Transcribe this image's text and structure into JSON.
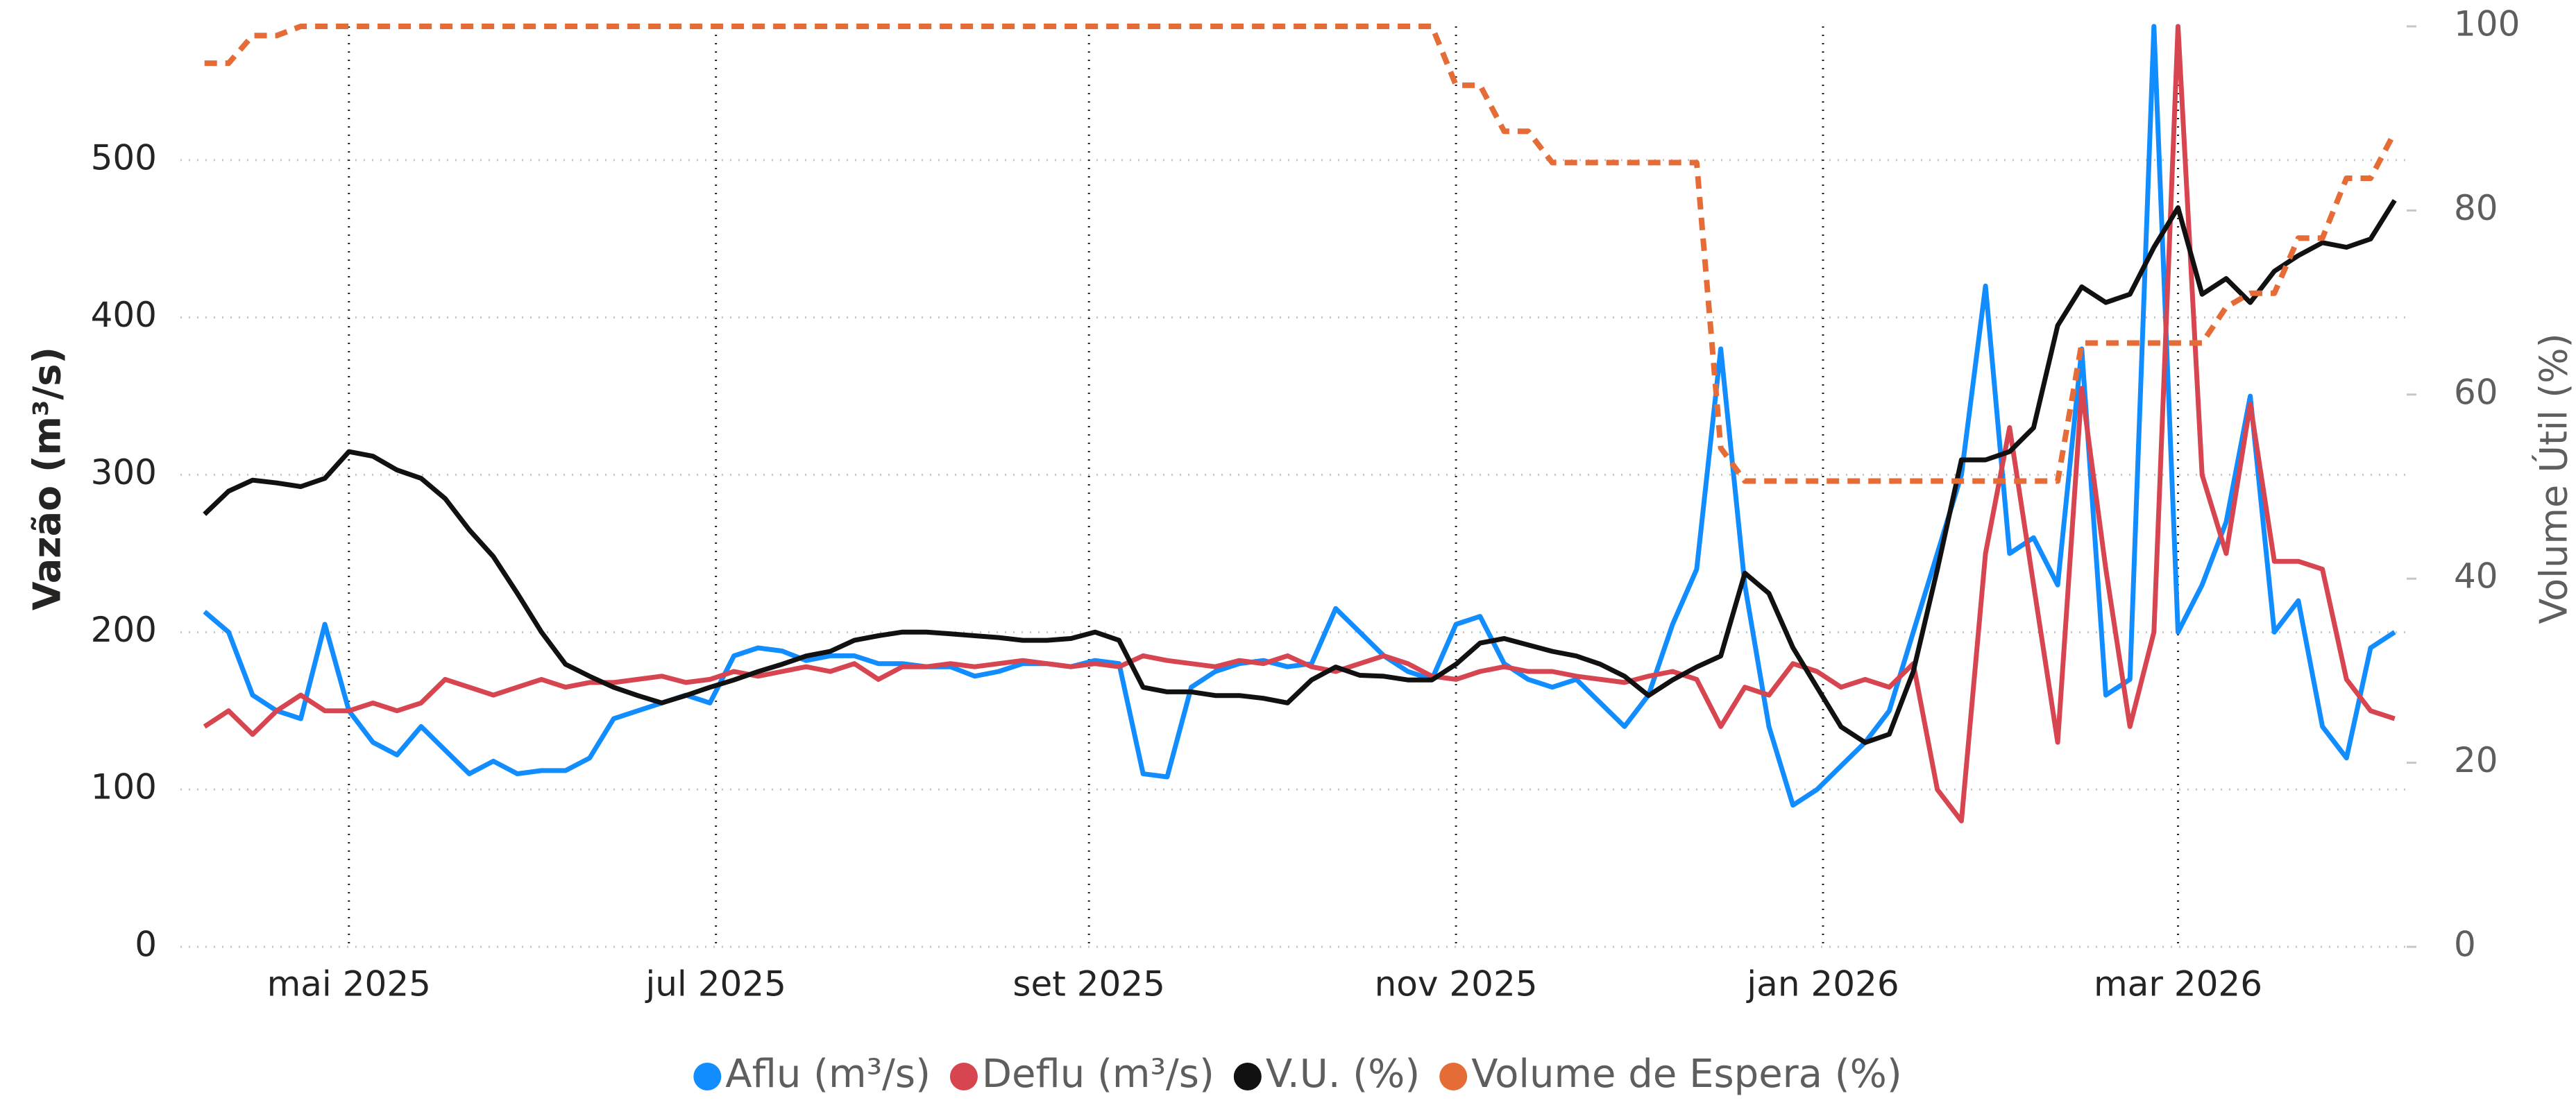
{
  "chart_data": {
    "type": "line",
    "x": [
      6,
      10,
      14,
      18,
      22,
      26,
      30,
      34,
      38,
      42,
      46,
      50,
      54,
      58,
      62,
      66,
      70,
      74,
      78,
      82,
      86,
      90,
      94,
      98,
      102,
      106,
      110,
      114,
      118,
      122,
      126,
      130,
      134,
      138,
      142,
      146,
      150,
      154,
      158,
      162,
      166,
      170,
      174,
      178,
      182,
      186,
      190,
      194,
      198,
      202,
      206,
      210,
      214,
      218,
      222,
      226,
      230,
      234,
      238,
      242,
      246,
      250,
      254,
      258,
      262,
      266,
      270,
      274,
      278,
      282,
      286,
      290,
      294,
      298,
      302,
      306,
      310,
      314,
      318,
      322,
      326,
      330,
      334,
      338,
      342,
      346,
      350,
      354,
      358,
      362,
      366,
      370
    ],
    "xlim": [
      2,
      372
    ],
    "xticks": [
      {
        "value": 30,
        "label": "mai 2025"
      },
      {
        "value": 91,
        "label": "jul 2025"
      },
      {
        "value": 153,
        "label": "set 2025"
      },
      {
        "value": 214,
        "label": "nov 2025"
      },
      {
        "value": 275,
        "label": "jan 2026"
      },
      {
        "value": 334,
        "label": "mar 2026"
      }
    ],
    "ylim": [
      0,
      585
    ],
    "yticks": [
      0,
      100,
      200,
      300,
      400,
      500
    ],
    "y2lim": [
      0,
      100
    ],
    "y2ticks": [
      0,
      20,
      40,
      60,
      80,
      100
    ],
    "ylabel": "Vazão (m³/s)",
    "y2label": "Volume Útil (%)",
    "grid": true,
    "legend": "bottom",
    "series": [
      {
        "name": "Aflu (m³/s)",
        "color": "#118DFF",
        "values": [
          213,
          200,
          160,
          150,
          145,
          205,
          150,
          130,
          122,
          140,
          125,
          110,
          118,
          110,
          112,
          112,
          120,
          145,
          150,
          155,
          160,
          155,
          185,
          190,
          188,
          182,
          185,
          185,
          180,
          180,
          178,
          178,
          172,
          175,
          180,
          180,
          178,
          182,
          180,
          110,
          108,
          165,
          175,
          180,
          182,
          178,
          180,
          215,
          200,
          185,
          175,
          170,
          205,
          210,
          180,
          170,
          165,
          170,
          155,
          140,
          160,
          205,
          240,
          380,
          230,
          140,
          90,
          100,
          115,
          130,
          150,
          200,
          250,
          300,
          420,
          250,
          260,
          230,
          380,
          160,
          170,
          585,
          200,
          230,
          270,
          350,
          200,
          220,
          140,
          120,
          190,
          200
        ]
      },
      {
        "name": "Deflu (m³/s)",
        "color": "#D64550",
        "values": [
          140,
          150,
          135,
          150,
          160,
          150,
          150,
          155,
          150,
          155,
          170,
          165,
          160,
          165,
          170,
          165,
          168,
          168,
          170,
          172,
          168,
          170,
          175,
          172,
          175,
          178,
          175,
          180,
          170,
          178,
          178,
          180,
          178,
          180,
          182,
          180,
          178,
          180,
          178,
          185,
          182,
          180,
          178,
          182,
          180,
          185,
          178,
          175,
          180,
          185,
          180,
          172,
          170,
          175,
          178,
          175,
          175,
          172,
          170,
          168,
          172,
          175,
          170,
          140,
          165,
          160,
          180,
          175,
          165,
          170,
          165,
          180,
          100,
          80,
          250,
          330,
          230,
          130,
          355,
          240,
          140,
          200,
          585,
          300,
          250,
          345,
          245,
          245,
          240,
          170,
          150,
          145
        ]
      },
      {
        "name": "V.U. (%)",
        "color": "#111111",
        "axis": "y2",
        "values": [
          47.0,
          49.5,
          50.7,
          50.4,
          50.0,
          50.9,
          53.8,
          53.3,
          51.8,
          50.9,
          48.7,
          45.3,
          42.4,
          38.4,
          34.2,
          30.7,
          29.4,
          28.2,
          27.3,
          26.5,
          27.3,
          28.2,
          29.0,
          29.9,
          30.7,
          31.6,
          32.1,
          33.3,
          33.8,
          34.2,
          34.2,
          34.0,
          33.8,
          33.6,
          33.3,
          33.3,
          33.5,
          34.2,
          33.3,
          28.2,
          27.7,
          27.7,
          27.3,
          27.3,
          27.0,
          26.5,
          29.0,
          30.4,
          29.5,
          29.4,
          29.0,
          29.0,
          30.7,
          33.0,
          33.5,
          32.8,
          32.1,
          31.6,
          30.7,
          29.4,
          27.3,
          29.0,
          30.4,
          31.6,
          40.6,
          38.4,
          32.5,
          28.2,
          23.9,
          22.2,
          23.1,
          29.9,
          41.0,
          52.9,
          52.9,
          53.8,
          56.4,
          67.5,
          71.7,
          70.0,
          70.9,
          76.0,
          80.3,
          70.9,
          72.6,
          70.0,
          73.4,
          75.1,
          76.5,
          76.0,
          76.9,
          81.1
        ]
      },
      {
        "name": "Volume de Espera (%)",
        "color": "#E66C37",
        "axis": "y2",
        "line_style": "dashed",
        "values": [
          96,
          96,
          99,
          99,
          100,
          100,
          100,
          100,
          100,
          100,
          100,
          100,
          100,
          100,
          100,
          100,
          100,
          100,
          100,
          100,
          100,
          100,
          100,
          100,
          100,
          100,
          100,
          100,
          100,
          100,
          100,
          100,
          100,
          100,
          100,
          100,
          100,
          100,
          100,
          100,
          100,
          100,
          100,
          100,
          100,
          100,
          100,
          100,
          100,
          100,
          100,
          100,
          93.6,
          93.6,
          88.6,
          88.6,
          85.2,
          85.2,
          85.2,
          85.2,
          85.2,
          85.2,
          85.2,
          54.2,
          50.6,
          50.6,
          50.6,
          50.6,
          50.6,
          50.6,
          50.6,
          50.6,
          50.6,
          50.6,
          50.6,
          50.6,
          50.6,
          50.6,
          65.6,
          65.6,
          65.6,
          65.6,
          65.6,
          65.6,
          69.5,
          71,
          71,
          77,
          77,
          83.5,
          83.5,
          88.5
        ]
      }
    ]
  }
}
